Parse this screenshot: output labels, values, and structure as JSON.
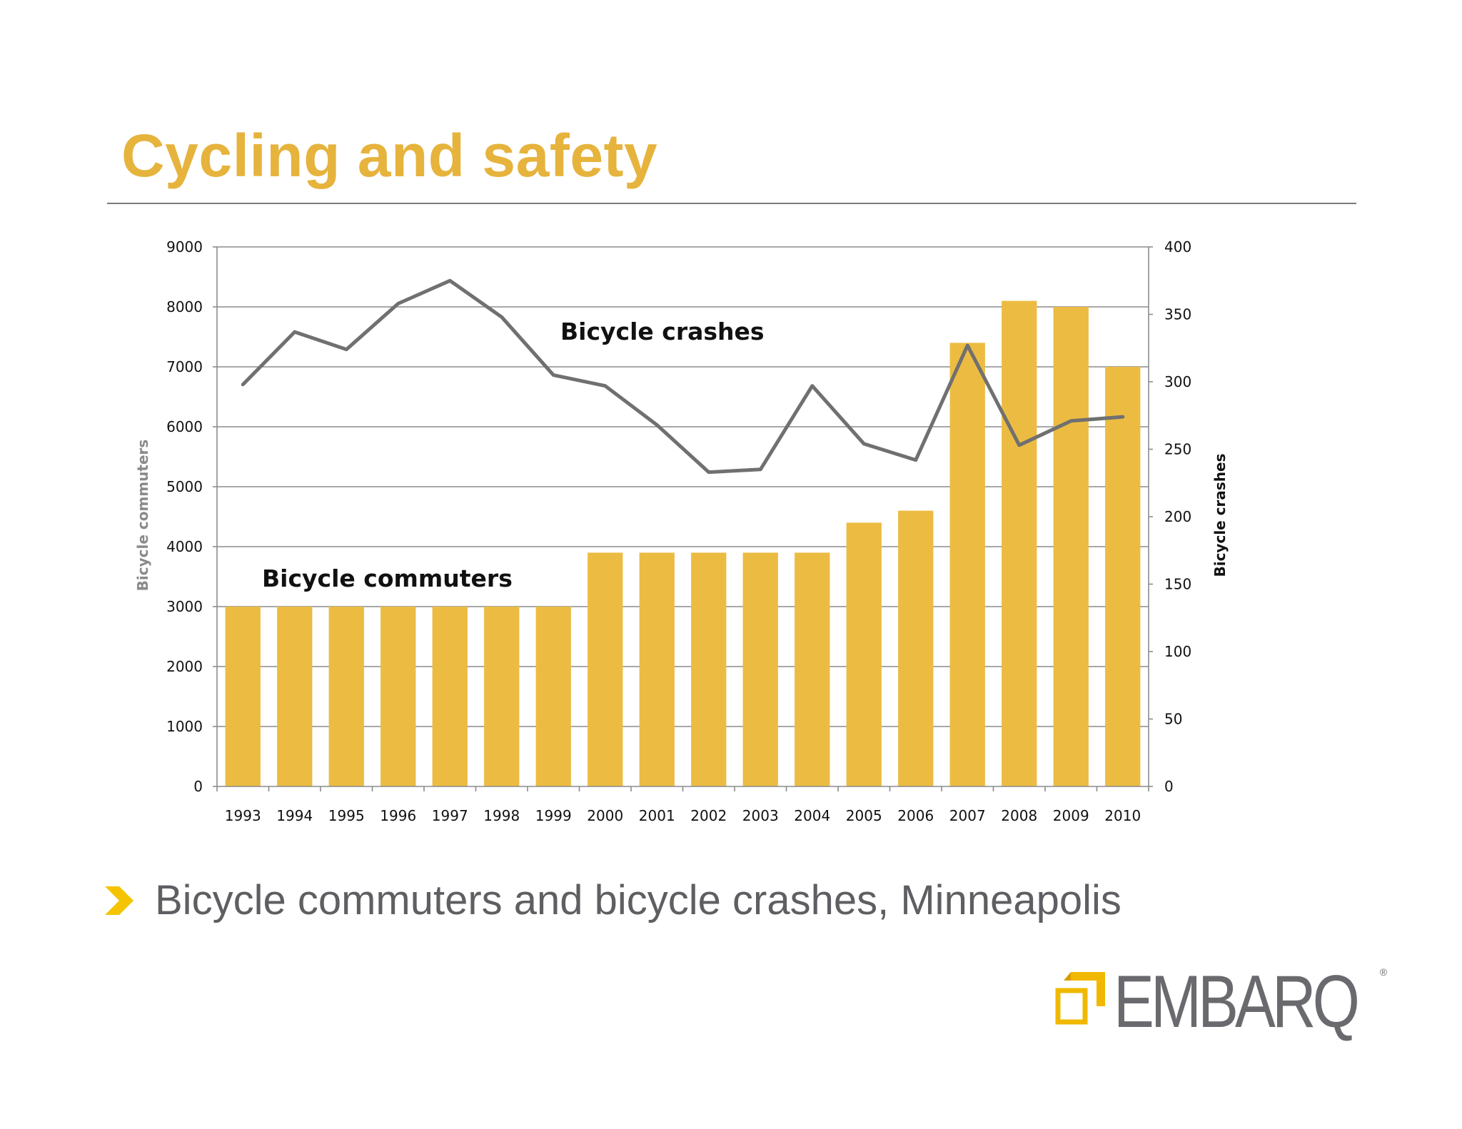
{
  "slide": {
    "title": "Cycling and safety",
    "caption": "Bicycle commuters and bicycle crashes, Minneapolis"
  },
  "logo": {
    "text": "EMBARQ",
    "reg": "®"
  },
  "colors": {
    "title": "#e6b33c",
    "bar": "#ecbc42",
    "line": "#707070",
    "grid": "#8c8c8c",
    "caption": "#5f5e62",
    "arrow": "#f4c400",
    "logo_mark": "#f0b800"
  },
  "icons": {
    "bullet": "chevron-right-icon",
    "logo_mark": "embarq-squares-icon"
  },
  "chart_data": {
    "type": "bar",
    "title": "",
    "categories": [
      "1993",
      "1994",
      "1995",
      "1996",
      "1997",
      "1998",
      "1999",
      "2000",
      "2001",
      "2002",
      "2003",
      "2004",
      "2005",
      "2006",
      "2007",
      "2008",
      "2009",
      "2010"
    ],
    "series": [
      {
        "name": "Bicycle commuters",
        "type": "bar",
        "axis": "left",
        "values": [
          3000,
          3000,
          3000,
          3000,
          3000,
          3000,
          3000,
          3900,
          3900,
          3900,
          3900,
          3900,
          4400,
          4600,
          7400,
          8100,
          8000,
          7000
        ]
      },
      {
        "name": "Bicycle crashes",
        "type": "line",
        "axis": "right",
        "values": [
          298,
          337,
          324,
          358,
          375,
          348,
          305,
          297,
          268,
          233,
          235,
          297,
          254,
          242,
          327,
          253,
          271,
          274
        ]
      }
    ],
    "ylabel": "Bicycle commuters",
    "y2label": "Bicycle crashes",
    "ylim": [
      0,
      9000
    ],
    "y2lim": [
      0,
      400
    ],
    "yticks": [
      "0",
      "1000",
      "2000",
      "3000",
      "4000",
      "5000",
      "6000",
      "7000",
      "8000",
      "9000"
    ],
    "y2ticks": [
      "0",
      "50",
      "100",
      "150",
      "200",
      "250",
      "300",
      "350",
      "400"
    ],
    "annotations": [
      "Bicycle crashes",
      "Bicycle commuters"
    ],
    "grid": true,
    "legend": "none"
  }
}
